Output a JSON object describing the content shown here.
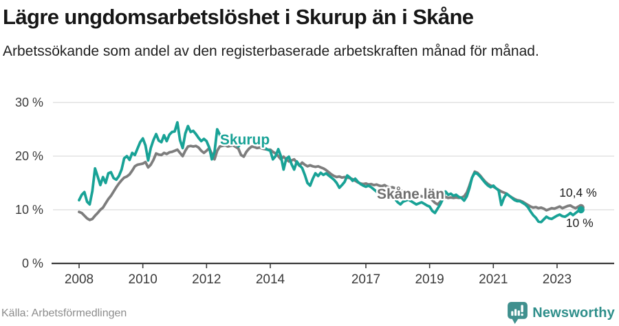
{
  "header": {
    "title": "Lägre ungdomsarbetslöshet i Skurup än i Skåne",
    "subtitle": "Arbetssökande som andel av den registerbaserade arbetskraften månad för månad."
  },
  "footer": {
    "source": "Källa: Arbetsförmedlingen",
    "brand": "Newsworthy"
  },
  "colors": {
    "skurup_teal": "#18a296",
    "skane_gray": "#7d7d7d",
    "axis_text": "#3a3a3a",
    "gridline": "#dcdcdc",
    "axis_line": "#3a3a3a",
    "end_label_text": "#1f1f1f",
    "inline_label_skane": "#6f6f6f",
    "logo_teal": "#40908e",
    "wordmark_teal": "#2e8e8a"
  },
  "chart_data": {
    "type": "line",
    "title": "Lägre ungdomsarbetslöshet i Skurup än i Skåne",
    "subtitle": "Arbetssökande som andel av den registerbaserade arbetskraften månad för månad.",
    "grid": true,
    "legend_position": "inline-labels",
    "frequency": "monthly",
    "start_year": 2008,
    "end_point": "2023-10",
    "x_axis": {
      "ticks": [
        {
          "year": 2008,
          "label": "2008"
        },
        {
          "year": 2010,
          "label": "2010"
        },
        {
          "year": 2012,
          "label": "2012"
        },
        {
          "year": 2014,
          "label": "2014"
        },
        {
          "year": 2017,
          "label": "2017"
        },
        {
          "year": 2019,
          "label": "2019"
        },
        {
          "year": 2021,
          "label": "2021"
        },
        {
          "year": 2023,
          "label": "2023"
        }
      ]
    },
    "y_axis": {
      "ticks": [
        0,
        10,
        20,
        30
      ],
      "suffix": " %",
      "range": [
        0,
        30
      ]
    },
    "series": [
      {
        "name": "Skurup",
        "color": "#18a296",
        "inline_label": "Skurup",
        "end_label": "10 %",
        "end_value": 10.0,
        "values": [
          11.8,
          12.8,
          13.3,
          11.5,
          11.0,
          13.5,
          17.7,
          16.2,
          14.6,
          16.1,
          15.0,
          16.8,
          17.0,
          15.9,
          15.6,
          16.3,
          17.5,
          19.6,
          20.0,
          19.3,
          20.6,
          20.2,
          21.4,
          22.6,
          23.3,
          22.0,
          19.2,
          21.5,
          23.0,
          24.1,
          22.9,
          22.6,
          23.9,
          22.8,
          24.0,
          24.5,
          24.6,
          26.3,
          23.0,
          21.5,
          24.2,
          25.6,
          24.5,
          24.7,
          24.1,
          23.4,
          22.8,
          23.2,
          22.8,
          21.6,
          19.4,
          20.8,
          25.0,
          24.0,
          22.6,
          23.0,
          23.5,
          23.4,
          23.7,
          22.4,
          21.8,
          22.3,
          22.6,
          23.0,
          23.5,
          23.3,
          22.2,
          22.8,
          22.4,
          21.9,
          21.5,
          21.2,
          21.0,
          19.4,
          20.0,
          21.3,
          20.0,
          17.5,
          19.5,
          19.9,
          18.5,
          17.5,
          19.0,
          18.3,
          17.8,
          16.5,
          15.0,
          14.5,
          15.8,
          16.8,
          16.3,
          16.9,
          16.5,
          16.8,
          16.4,
          16.0,
          15.6,
          15.0,
          14.1,
          14.6,
          15.2,
          16.4,
          16.0,
          15.4,
          15.8,
          15.2,
          14.8,
          14.5,
          14.3,
          14.5,
          14.2,
          13.8,
          13.4,
          13.0,
          12.8,
          12.9,
          12.8,
          12.5,
          12.3,
          12.0,
          11.4,
          11.0,
          11.5,
          11.7,
          11.9,
          11.6,
          11.3,
          11.0,
          11.2,
          11.4,
          11.1,
          10.8,
          10.6,
          9.8,
          9.4,
          10.2,
          11.0,
          12.0,
          13.4,
          12.8,
          13.0,
          12.6,
          12.8,
          12.4,
          12.2,
          11.7,
          12.5,
          14.0,
          16.0,
          16.9,
          16.7,
          16.2,
          15.6,
          15.0,
          14.5,
          14.2,
          14.5,
          14.0,
          13.6,
          10.9,
          12.2,
          13.0,
          12.6,
          12.2,
          11.8,
          11.6,
          11.6,
          11.3,
          11.0,
          10.5,
          9.7,
          9.0,
          8.5,
          7.8,
          7.7,
          8.2,
          8.7,
          8.4,
          8.3,
          8.6,
          8.9,
          9.1,
          8.8,
          8.7,
          9.0,
          9.4,
          9.0,
          9.4,
          9.8,
          10.0
        ]
      },
      {
        "name": "Skåne län",
        "color": "#7d7d7d",
        "inline_label": "Skåne län",
        "end_label": "10,4 %",
        "end_value": 10.4,
        "values": [
          9.6,
          9.4,
          8.9,
          8.4,
          8.1,
          8.3,
          8.9,
          9.4,
          10.0,
          10.4,
          11.2,
          12.0,
          12.6,
          13.4,
          14.2,
          14.9,
          15.5,
          16.0,
          16.2,
          16.6,
          17.3,
          18.1,
          18.4,
          18.5,
          18.6,
          18.9,
          17.9,
          18.4,
          19.3,
          20.5,
          20.3,
          20.2,
          20.6,
          20.4,
          20.7,
          20.8,
          21.0,
          21.2,
          20.6,
          20.0,
          21.0,
          21.8,
          21.9,
          21.8,
          21.9,
          21.6,
          21.0,
          20.6,
          21.0,
          21.5,
          20.4,
          19.4,
          21.0,
          21.8,
          21.9,
          22.0,
          21.8,
          21.9,
          22.0,
          21.7,
          21.4,
          20.2,
          19.9,
          20.8,
          21.4,
          21.8,
          21.7,
          21.5,
          21.6,
          21.4,
          21.3,
          21.2,
          21.2,
          20.8,
          20.5,
          20.0,
          19.4,
          19.9,
          19.4,
          19.0,
          19.2,
          19.4,
          18.8,
          18.2,
          18.8,
          18.4,
          18.1,
          18.3,
          18.1,
          18.0,
          18.1,
          17.9,
          17.7,
          17.4,
          17.0,
          16.6,
          16.3,
          16.1,
          16.2,
          16.0,
          16.1,
          16.0,
          15.9,
          15.7,
          15.4,
          15.1,
          14.9,
          14.8,
          14.9,
          14.7,
          14.8,
          14.6,
          14.7,
          14.5,
          14.4,
          14.6,
          14.3,
          14.1,
          14.2,
          14.0,
          13.8,
          13.6,
          13.5,
          13.3,
          13.2,
          13.0,
          12.9,
          12.8,
          12.7,
          12.5,
          12.4,
          12.3,
          12.2,
          11.8,
          11.3,
          11.0,
          11.5,
          12.0,
          12.4,
          12.2,
          12.3,
          12.2,
          12.3,
          12.2,
          12.3,
          12.5,
          13.2,
          14.5,
          16.0,
          17.1,
          16.9,
          16.4,
          15.8,
          15.2,
          14.8,
          14.5,
          14.3,
          14.0,
          13.7,
          13.4,
          13.2,
          13.0,
          12.6,
          12.3,
          12.0,
          11.8,
          11.7,
          11.5,
          11.2,
          10.9,
          10.6,
          10.4,
          10.5,
          10.3,
          10.4,
          10.2,
          9.9,
          10.1,
          10.3,
          10.2,
          10.4,
          10.6,
          10.3,
          10.5,
          10.7,
          10.8,
          10.5,
          10.3,
          10.6,
          10.4
        ]
      }
    ]
  }
}
